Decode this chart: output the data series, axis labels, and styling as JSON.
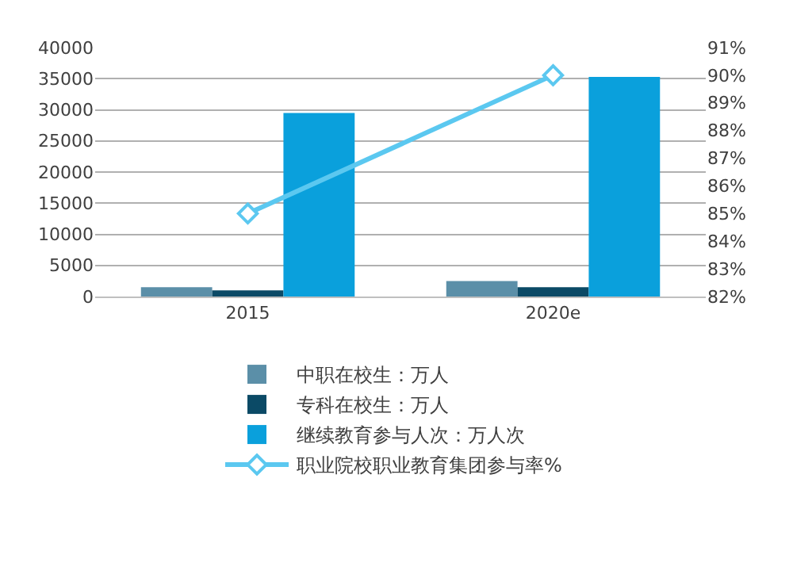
{
  "chart_data": {
    "type": "bar",
    "categories": [
      "2015",
      "2020e"
    ],
    "series": [
      {
        "name": "中职在校生：万人",
        "color": "#5b8fa8",
        "values": [
          1500,
          2500
        ]
      },
      {
        "name": "专科在校生：万人",
        "color": "#0b4a66",
        "values": [
          1000,
          1500
        ]
      },
      {
        "name": "继续教育参与人次：万人次",
        "color": "#0aa0dc",
        "values": [
          29500,
          35300
        ]
      },
      {
        "name": "职业院校职业教育集团参与率%",
        "type": "line",
        "axis": "y2",
        "color": "#5bc8f0",
        "values": [
          85,
          90
        ],
        "marker": "diamond"
      }
    ],
    "ylim": [
      0,
      40000
    ],
    "yticks": [
      0,
      5000,
      10000,
      15000,
      20000,
      25000,
      30000,
      35000,
      40000
    ],
    "y2lim": [
      82,
      91
    ],
    "y2ticks": [
      {
        "value": 82,
        "label": "82%"
      },
      {
        "value": 83,
        "label": "83%"
      },
      {
        "value": 84,
        "label": "84%"
      },
      {
        "value": 85,
        "label": "85%"
      },
      {
        "value": 86,
        "label": "86%"
      },
      {
        "value": 87,
        "label": "87%"
      },
      {
        "value": 88,
        "label": "88%"
      },
      {
        "value": 89,
        "label": "89%"
      },
      {
        "value": 90,
        "label": "90%"
      },
      {
        "value": 91,
        "label": "91%"
      }
    ],
    "grid": "y",
    "legend": "bottom"
  }
}
